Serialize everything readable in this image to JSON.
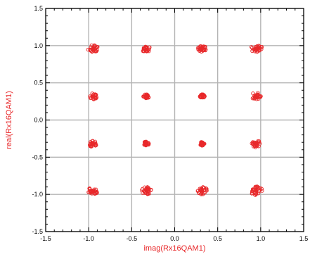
{
  "chart_data": {
    "type": "scatter",
    "title": "",
    "xlabel": "imag(Rx16QAM1)",
    "ylabel": "real(Rx16QAM1)",
    "xlim": [
      -1.5,
      1.5
    ],
    "ylim": [
      -1.5,
      1.5
    ],
    "x_ticks": [
      "-1.5",
      "-1.0",
      "-0.5",
      "0.0",
      "0.5",
      "1.0",
      "1.5"
    ],
    "y_ticks": [
      "1.5",
      "1.0",
      "0.5",
      "0.0",
      "-0.5",
      "-1.0",
      "-1.5"
    ],
    "x_tick_values": [
      -1.5,
      -1.0,
      -0.5,
      0.0,
      0.5,
      1.0,
      1.5
    ],
    "y_tick_values": [
      1.5,
      1.0,
      0.5,
      0.0,
      -0.5,
      -1.0,
      -1.5
    ],
    "grid": true,
    "marker_color": "#e8282a",
    "clusters": [
      {
        "x": -0.95,
        "y": 0.96,
        "spread": 0.06
      },
      {
        "x": -0.33,
        "y": 0.95,
        "spread": 0.05
      },
      {
        "x": 0.32,
        "y": 0.96,
        "spread": 0.05
      },
      {
        "x": 0.95,
        "y": 0.96,
        "spread": 0.07
      },
      {
        "x": -0.95,
        "y": 0.32,
        "spread": 0.05
      },
      {
        "x": -0.33,
        "y": 0.32,
        "spread": 0.035
      },
      {
        "x": 0.32,
        "y": 0.32,
        "spread": 0.03
      },
      {
        "x": 0.95,
        "y": 0.32,
        "spread": 0.06
      },
      {
        "x": -0.95,
        "y": -0.32,
        "spread": 0.05
      },
      {
        "x": -0.33,
        "y": -0.32,
        "spread": 0.035
      },
      {
        "x": 0.32,
        "y": -0.32,
        "spread": 0.03
      },
      {
        "x": 0.95,
        "y": -0.32,
        "spread": 0.06
      },
      {
        "x": -0.95,
        "y": -0.95,
        "spread": 0.06
      },
      {
        "x": -0.33,
        "y": -0.95,
        "spread": 0.06
      },
      {
        "x": 0.32,
        "y": -0.95,
        "spread": 0.06
      },
      {
        "x": 0.95,
        "y": -0.95,
        "spread": 0.07
      }
    ]
  }
}
